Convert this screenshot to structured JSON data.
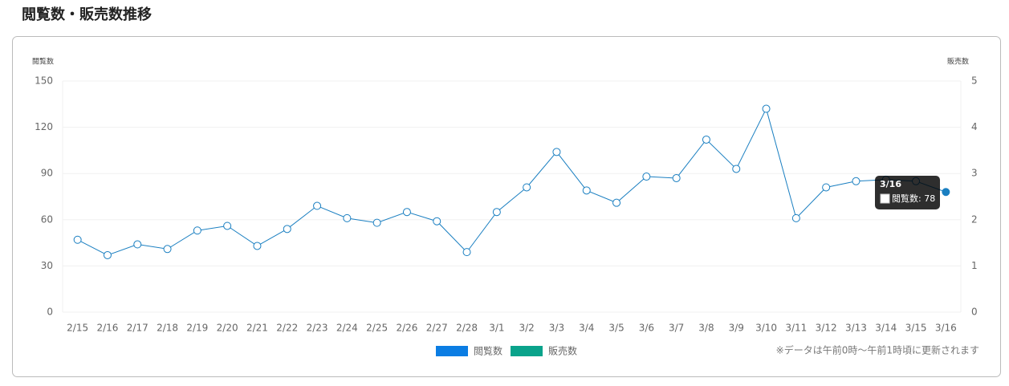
{
  "page_title": "閲覧数・販売数推移",
  "chart_data": {
    "type": "line",
    "y_label": "閲覧数",
    "y2_label": "販売数",
    "categories": [
      "2/15",
      "2/16",
      "2/17",
      "2/18",
      "2/19",
      "2/20",
      "2/21",
      "2/22",
      "2/23",
      "2/24",
      "2/25",
      "2/26",
      "2/27",
      "2/28",
      "3/1",
      "3/2",
      "3/3",
      "3/4",
      "3/5",
      "3/6",
      "3/7",
      "3/8",
      "3/9",
      "3/10",
      "3/11",
      "3/12",
      "3/13",
      "3/14",
      "3/15",
      "3/16"
    ],
    "series": [
      {
        "name": "閲覧数",
        "color": "#1a7fc1",
        "legend_color": "#0b7de3",
        "values": [
          47,
          37,
          44,
          41,
          53,
          56,
          43,
          54,
          69,
          61,
          58,
          65,
          59,
          39,
          65,
          81,
          104,
          79,
          71,
          88,
          87,
          112,
          93,
          132,
          61,
          81,
          85,
          86,
          85,
          78
        ]
      },
      {
        "name": "販売数",
        "color": "#0aa38b",
        "axis": "y2",
        "values": [
          null,
          null,
          null,
          null,
          null,
          null,
          null,
          null,
          null,
          null,
          null,
          null,
          null,
          null,
          null,
          null,
          null,
          null,
          null,
          null,
          null,
          null,
          null,
          null,
          null,
          null,
          null,
          null,
          null,
          null
        ]
      }
    ],
    "ylim": [
      0,
      150
    ],
    "yticks": [
      0,
      30,
      60,
      90,
      120,
      150
    ],
    "y2lim": [
      0,
      5
    ],
    "y2ticks": [
      0,
      1,
      2,
      3,
      4,
      5
    ],
    "grid": true,
    "tooltip": {
      "title": "3/16",
      "text": "閲覧数: 78",
      "index": 29
    },
    "note": "※データは午前0時〜午前1時頃に更新されます"
  }
}
